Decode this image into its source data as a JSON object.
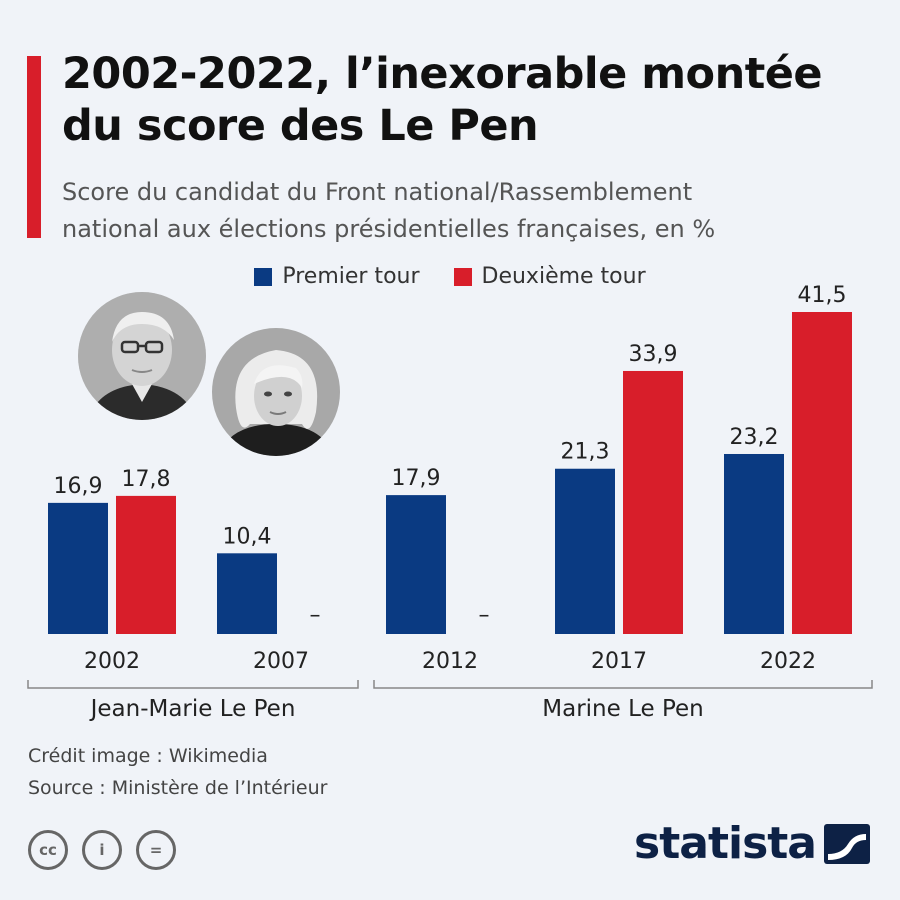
{
  "header": {
    "title_lines": [
      "2002-2022, l’inexorable montée",
      "du score des Le Pen"
    ],
    "subtitle_lines": [
      "Score du candidat du Front national/Rassemblement",
      "national aux élections présidentielles françaises, en %"
    ]
  },
  "legend": [
    {
      "label": "Premier tour",
      "color": "#0a3a82"
    },
    {
      "label": "Deuxième tour",
      "color": "#d81e2a"
    }
  ],
  "chart_data": {
    "type": "bar",
    "categories": [
      "2002",
      "2007",
      "2012",
      "2017",
      "2022"
    ],
    "series": [
      {
        "name": "Premier tour",
        "color": "#0a3a82",
        "values": [
          16.9,
          10.4,
          17.9,
          21.3,
          23.2
        ],
        "labels": [
          "16,9",
          "10,4",
          "17,9",
          "21,3",
          "23,2"
        ]
      },
      {
        "name": "Deuxième tour",
        "color": "#d81e2a",
        "values": [
          17.8,
          null,
          null,
          33.9,
          41.5
        ],
        "labels": [
          "17,8",
          "–",
          "–",
          "33,9",
          "41,5"
        ]
      }
    ],
    "groups": [
      {
        "label": "Jean-Marie Le Pen",
        "categories": [
          "2002",
          "2007"
        ]
      },
      {
        "label": "Marine Le Pen",
        "categories": [
          "2012",
          "2017",
          "2022"
        ]
      }
    ],
    "ylim": [
      0,
      45
    ],
    "grid": false,
    "legend_position": "top-center"
  },
  "photos": [
    {
      "icon": "jean-marie-le-pen-photo"
    },
    {
      "icon": "marine-le-pen-photo"
    }
  ],
  "footer": {
    "credit": "Crédit image : Wikimedia",
    "source": "Source : Ministère de l’Intérieur",
    "license_icons": [
      {
        "icon": "cc-icon",
        "glyph": "cc"
      },
      {
        "icon": "attribution-icon",
        "glyph": "i"
      },
      {
        "icon": "no-derivatives-icon",
        "glyph": "="
      }
    ],
    "brand": "statista"
  }
}
